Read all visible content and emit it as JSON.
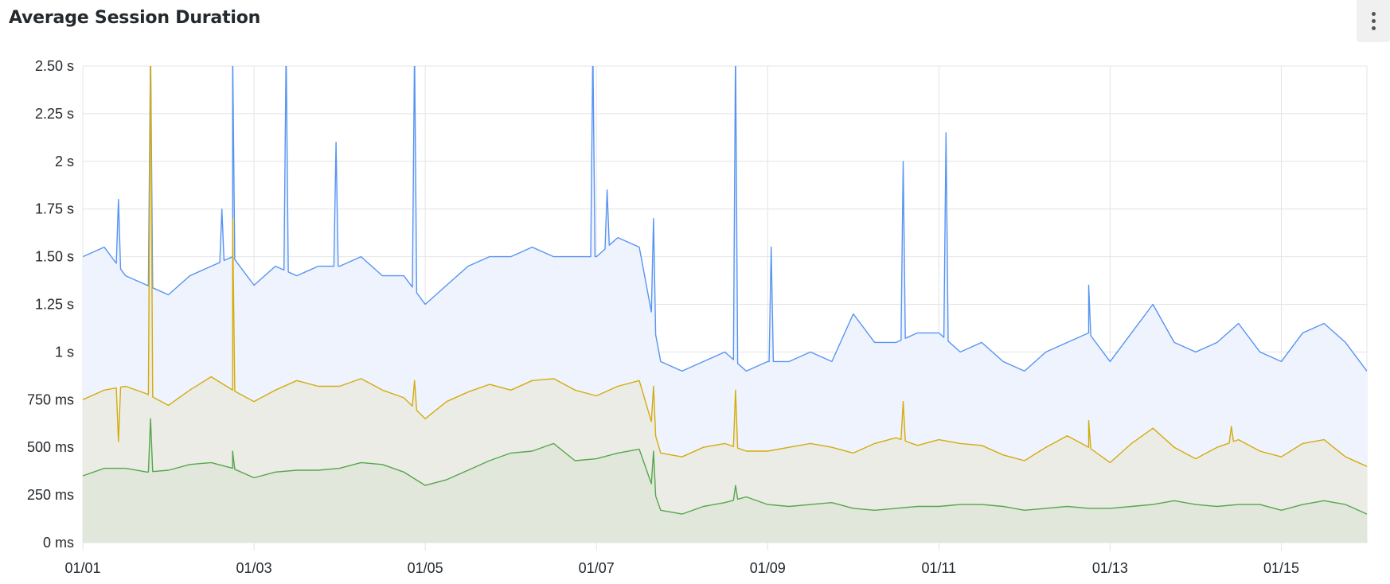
{
  "panel": {
    "title": "Average Session Duration",
    "menu_icon": "kebab-menu-icon"
  },
  "chart_data": {
    "type": "area",
    "title": "Average Session Duration",
    "xlabel": "",
    "ylabel": "",
    "ylim_ms": [
      0,
      2500
    ],
    "xlim": [
      "01/01 00:00",
      "01/16 00:00"
    ],
    "grid": true,
    "legend": "none",
    "y_ticks": [
      {
        "value": 0,
        "label": "0 ms"
      },
      {
        "value": 250,
        "label": "250 ms"
      },
      {
        "value": 500,
        "label": "500 ms"
      },
      {
        "value": 750,
        "label": "750 ms"
      },
      {
        "value": 1000,
        "label": "1 s"
      },
      {
        "value": 1250,
        "label": "1.25 s"
      },
      {
        "value": 1500,
        "label": "1.50 s"
      },
      {
        "value": 1750,
        "label": "1.75 s"
      },
      {
        "value": 2000,
        "label": "2 s"
      },
      {
        "value": 2250,
        "label": "2.25 s"
      },
      {
        "value": 2500,
        "label": "2.50 s"
      }
    ],
    "x_ticks": [
      "01/01",
      "01/03",
      "01/05",
      "01/07",
      "01/09",
      "01/11",
      "01/13",
      "01/15"
    ],
    "x_interval_hours": 6,
    "series": [
      {
        "color": "#5794F2",
        "fill": "#EEF3FD",
        "values": [
          1500,
          1550,
          1400,
          1350,
          1300,
          1400,
          1450,
          1500,
          1350,
          1450,
          1400,
          1450,
          1450,
          1500,
          1400,
          1400,
          1250,
          1350,
          1450,
          1500,
          1500,
          1550,
          1500,
          1500,
          1500,
          1600,
          1550,
          950,
          900,
          950,
          1000,
          900,
          950,
          950,
          1000,
          950,
          1200,
          1050,
          1050,
          1100,
          1100,
          1000,
          1050,
          950,
          900,
          1000,
          1050,
          1100,
          950,
          1100,
          1250,
          1050,
          1000,
          1050,
          1150,
          1000,
          950,
          1100,
          1150,
          1050,
          900
        ],
        "spikes": [
          [
            "01/01 10:00",
            1800
          ],
          [
            "01/01 19:00",
            2600
          ],
          [
            "01/02 15:00",
            1750
          ],
          [
            "01/02 18:00",
            2600
          ],
          [
            "01/03 09:00",
            2600
          ],
          [
            "01/03 23:00",
            2100
          ],
          [
            "01/04 21:00",
            2600
          ],
          [
            "01/06 23:00",
            2600
          ],
          [
            "01/07 03:00",
            1850
          ],
          [
            "01/07 16:00",
            1700
          ],
          [
            "01/08 15:00",
            2600
          ],
          [
            "01/09 01:00",
            1550
          ],
          [
            "01/10 14:00",
            2000
          ],
          [
            "01/11 02:00",
            2150
          ],
          [
            "01/12 18:00",
            1350
          ]
        ]
      },
      {
        "color": "#D4AC0D",
        "fill": "#ECECE6",
        "values": [
          750,
          800,
          820,
          780,
          720,
          800,
          870,
          800,
          740,
          800,
          850,
          820,
          820,
          860,
          800,
          760,
          650,
          740,
          790,
          830,
          800,
          850,
          860,
          800,
          770,
          820,
          850,
          470,
          450,
          500,
          520,
          480,
          480,
          500,
          520,
          500,
          470,
          520,
          550,
          510,
          540,
          520,
          510,
          460,
          430,
          500,
          560,
          500,
          420,
          520,
          600,
          500,
          440,
          500,
          540,
          480,
          450,
          520,
          540,
          450,
          400
        ],
        "spikes": [
          [
            "01/01 10:00",
            530
          ],
          [
            "01/01 19:00",
            2600
          ],
          [
            "01/02 18:00",
            1700
          ],
          [
            "01/04 21:00",
            850
          ],
          [
            "01/07 16:00",
            820
          ],
          [
            "01/08 15:00",
            800
          ],
          [
            "01/10 14:00",
            740
          ],
          [
            "01/12 18:00",
            640
          ],
          [
            "01/14 10:00",
            610
          ]
        ]
      },
      {
        "color": "#56A64B",
        "fill": "#E1E8DB",
        "values": [
          350,
          390,
          390,
          370,
          380,
          410,
          420,
          390,
          340,
          370,
          380,
          380,
          390,
          420,
          410,
          370,
          300,
          330,
          380,
          430,
          470,
          480,
          520,
          430,
          440,
          470,
          490,
          170,
          150,
          190,
          210,
          240,
          200,
          190,
          200,
          210,
          180,
          170,
          180,
          190,
          190,
          200,
          200,
          190,
          170,
          180,
          190,
          180,
          180,
          190,
          200,
          220,
          200,
          190,
          200,
          200,
          170,
          200,
          220,
          200,
          150
        ],
        "spikes": [
          [
            "01/01 19:00",
            650
          ],
          [
            "01/02 18:00",
            480
          ],
          [
            "01/07 16:00",
            480
          ],
          [
            "01/08 15:00",
            300
          ]
        ]
      }
    ]
  }
}
